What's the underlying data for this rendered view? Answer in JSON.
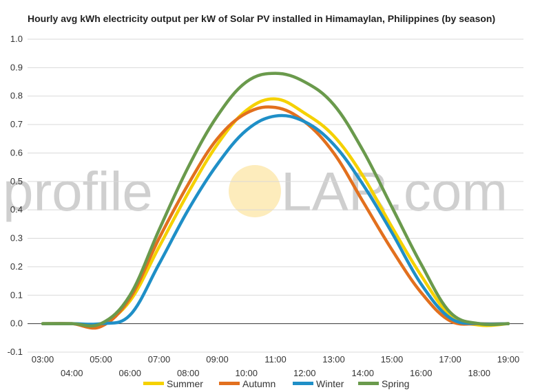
{
  "chart_data": {
    "type": "line",
    "title": "Hourly avg kWh electricity output per kW of Solar PV installed in Himamaylan, Philippines (by season)",
    "xlabel": "",
    "ylabel": "",
    "x": [
      "03:00",
      "04:00",
      "05:00",
      "06:00",
      "07:00",
      "08:00",
      "09:00",
      "10:00",
      "11:00",
      "12:00",
      "13:00",
      "14:00",
      "15:00",
      "16:00",
      "17:00",
      "18:00",
      "19:00"
    ],
    "ylim": [
      -0.1,
      1.0
    ],
    "yticks": [
      "-0.1",
      "0.0",
      "0.1",
      "0.2",
      "0.3",
      "0.4",
      "0.5",
      "0.6",
      "0.7",
      "0.8",
      "0.9",
      "1.0"
    ],
    "grid": true,
    "legend_position": "bottom",
    "watermark": {
      "left": "profile",
      "right": "LAR.com",
      "sun_color": "#fde9b0"
    },
    "series": [
      {
        "name": "Summer",
        "color": "#f5d100",
        "values": [
          0.0,
          0.0,
          0.0,
          0.08,
          0.27,
          0.46,
          0.63,
          0.75,
          0.79,
          0.74,
          0.66,
          0.52,
          0.34,
          0.17,
          0.03,
          -0.005,
          0.0
        ]
      },
      {
        "name": "Autumn",
        "color": "#e2701e",
        "values": [
          0.0,
          0.0,
          -0.01,
          0.09,
          0.3,
          0.49,
          0.65,
          0.74,
          0.76,
          0.71,
          0.6,
          0.43,
          0.26,
          0.11,
          0.01,
          0.0,
          0.0
        ]
      },
      {
        "name": "Winter",
        "color": "#1f8fc7",
        "values": [
          0.0,
          0.0,
          0.0,
          0.03,
          0.21,
          0.4,
          0.56,
          0.68,
          0.73,
          0.71,
          0.63,
          0.49,
          0.32,
          0.14,
          0.02,
          0.0,
          0.0
        ]
      },
      {
        "name": "Spring",
        "color": "#6a9a4c",
        "values": [
          0.0,
          0.0,
          0.0,
          0.1,
          0.33,
          0.55,
          0.73,
          0.85,
          0.88,
          0.85,
          0.77,
          0.61,
          0.41,
          0.21,
          0.04,
          0.0,
          0.0
        ]
      }
    ]
  }
}
